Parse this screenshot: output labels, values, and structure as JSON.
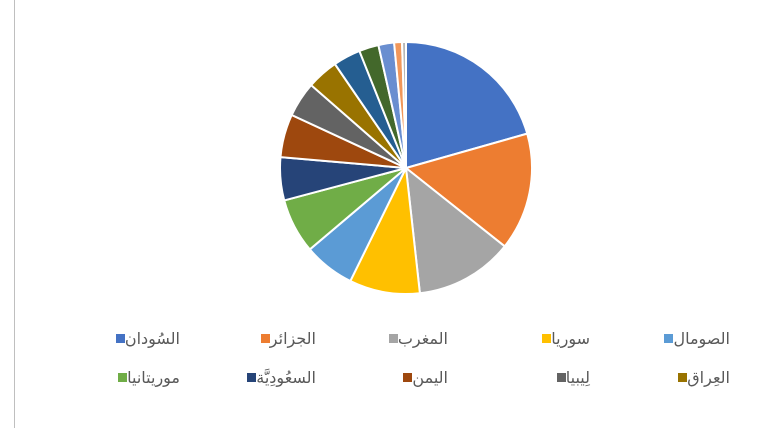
{
  "chart_data": {
    "type": "pie",
    "title": "",
    "slices": [
      {
        "label": "السُودان",
        "value": 20.5,
        "color": "#4472C4"
      },
      {
        "label": "الجزائر",
        "value": 15.0,
        "color": "#ED7D31"
      },
      {
        "label": "المغرب",
        "value": 12.5,
        "color": "#A5A5A5"
      },
      {
        "label": "سوريا",
        "value": 9.0,
        "color": "#FFC000"
      },
      {
        "label": "الصومال",
        "value": 6.5,
        "color": "#5B9BD5"
      },
      {
        "label": "موريتانيا",
        "value": 7.0,
        "color": "#70AD47"
      },
      {
        "label": "السعُودِيَّة",
        "value": 5.5,
        "color": "#264478"
      },
      {
        "label": "اليمن",
        "value": 5.5,
        "color": "#9E480E"
      },
      {
        "label": "لِيبيا",
        "value": 4.5,
        "color": "#636363"
      },
      {
        "label": "العِراق",
        "value": 4.0,
        "color": "#997300"
      },
      {
        "label": "",
        "value": 3.5,
        "color": "#255E91"
      },
      {
        "label": "",
        "value": 2.5,
        "color": "#43682B"
      },
      {
        "label": "",
        "value": 2.0,
        "color": "#698ED0"
      },
      {
        "label": "",
        "value": 1.0,
        "color": "#F1975A"
      },
      {
        "label": "",
        "value": 0.5,
        "color": "#B7B7B7"
      }
    ],
    "legend": "bottom",
    "legend_rows": [
      [
        "السُودان",
        "الجزائر",
        "المغرب",
        "سوريا",
        "الصومال"
      ],
      [
        "موريتانيا",
        "السعُودِيَّة",
        "اليمن",
        "لِيبيا",
        "العِراق"
      ]
    ]
  }
}
